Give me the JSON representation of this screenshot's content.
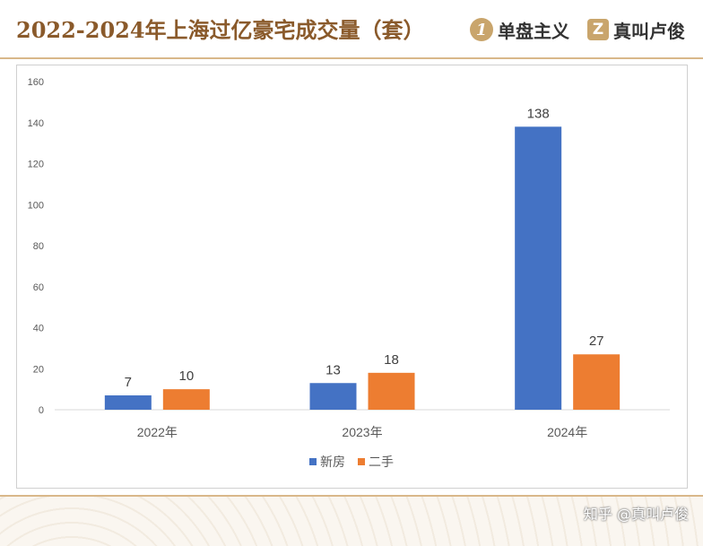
{
  "header": {
    "title": "2022-2024年上海过亿豪宅成交量（套）",
    "brand1_badge": "1",
    "brand1_text": "单盘主义",
    "brand2_badge": "Z",
    "brand2_text": "真叫卢俊"
  },
  "watermark": "知乎 @真叫卢俊",
  "colors": {
    "accent": "#8a5a2b",
    "gold": "#c9a56c",
    "series_new": "#4472c4",
    "series_second": "#ed7d31"
  },
  "chart_data": {
    "type": "bar",
    "categories": [
      "2022年",
      "2023年",
      "2024年"
    ],
    "series": [
      {
        "name": "新房",
        "values": [
          7,
          13,
          138
        ],
        "color": "#4472c4"
      },
      {
        "name": "二手",
        "values": [
          10,
          18,
          27
        ],
        "color": "#ed7d31"
      }
    ],
    "ylim": [
      0,
      160
    ],
    "yticks": [
      0,
      20,
      40,
      60,
      80,
      100,
      120,
      140,
      160
    ],
    "grid": false,
    "legend": "bottom",
    "data_labels": true
  }
}
